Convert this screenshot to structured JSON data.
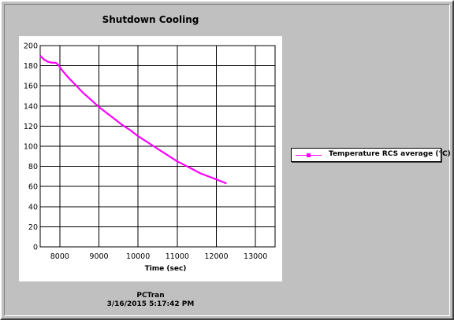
{
  "footer": {
    "app": "PCTran",
    "timestamp": "3/16/2015 5:17:42 PM"
  },
  "chart_data": {
    "type": "line",
    "title": "Shutdown Cooling",
    "xlabel": "Time (sec)",
    "ylabel": "",
    "xlim": [
      7500,
      13500
    ],
    "ylim": [
      0,
      200
    ],
    "x_ticks": [
      8000,
      9000,
      10000,
      11000,
      12000,
      13000
    ],
    "y_ticks": [
      0,
      20,
      40,
      60,
      80,
      100,
      120,
      140,
      160,
      180,
      200
    ],
    "grid": true,
    "legend_position": "right",
    "series": [
      {
        "name": "Temperature RCS average (°C)",
        "color": "#ff00ff",
        "x": [
          7500,
          7600,
          7700,
          7800,
          7900,
          7960,
          8050,
          8200,
          8400,
          8600,
          8800,
          9000,
          9200,
          9400,
          9600,
          9800,
          10000,
          10200,
          10400,
          10600,
          10800,
          11000,
          11200,
          11400,
          11600,
          11800,
          12000,
          12200,
          12260
        ],
        "y": [
          190,
          186,
          184,
          183,
          183,
          181,
          176,
          169,
          161,
          153,
          146,
          139,
          133,
          127,
          121,
          116,
          110,
          105,
          100,
          95,
          90,
          85,
          81,
          77,
          73,
          70,
          67,
          64,
          63
        ]
      }
    ]
  }
}
